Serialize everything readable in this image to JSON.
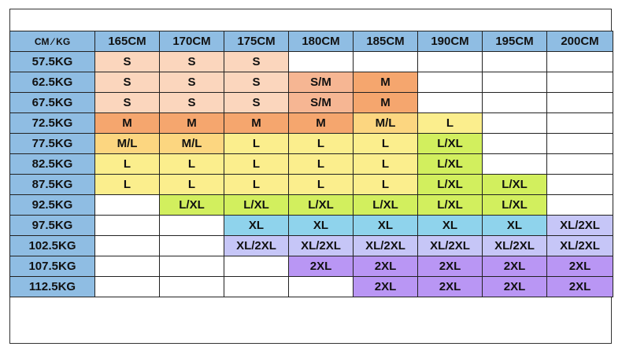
{
  "corner_label": "CM ⁄ KG",
  "heights": [
    "165CM",
    "170CM",
    "175CM",
    "180CM",
    "185CM",
    "190CM",
    "195CM",
    "200CM"
  ],
  "rows": [
    {
      "weight": "57.5KG",
      "sizes": [
        "S",
        "S",
        "S",
        "",
        "",
        "",
        "",
        ""
      ]
    },
    {
      "weight": "62.5KG",
      "sizes": [
        "S",
        "S",
        "S",
        "S/M",
        "M",
        "",
        "",
        ""
      ]
    },
    {
      "weight": "67.5KG",
      "sizes": [
        "S",
        "S",
        "S",
        "S/M",
        "M",
        "",
        "",
        ""
      ]
    },
    {
      "weight": "72.5KG",
      "sizes": [
        "M",
        "M",
        "M",
        "M",
        "M/L",
        "L",
        "",
        ""
      ]
    },
    {
      "weight": "77.5KG",
      "sizes": [
        "M/L",
        "M/L",
        "L",
        "L",
        "L",
        "L/XL",
        "",
        ""
      ]
    },
    {
      "weight": "82.5KG",
      "sizes": [
        "L",
        "L",
        "L",
        "L",
        "L",
        "L/XL",
        "",
        ""
      ]
    },
    {
      "weight": "87.5KG",
      "sizes": [
        "L",
        "L",
        "L",
        "L",
        "L",
        "L/XL",
        "L/XL",
        ""
      ]
    },
    {
      "weight": "92.5KG",
      "sizes": [
        "",
        "L/XL",
        "L/XL",
        "L/XL",
        "L/XL",
        "L/XL",
        "L/XL",
        ""
      ]
    },
    {
      "weight": "97.5KG",
      "sizes": [
        "",
        "",
        "XL",
        "XL",
        "XL",
        "XL",
        "XL",
        "XL/2XL"
      ]
    },
    {
      "weight": "102.5KG",
      "sizes": [
        "",
        "",
        "XL/2XL",
        "XL/2XL",
        "XL/2XL",
        "XL/2XL",
        "XL/2XL",
        "XL/2XL"
      ]
    },
    {
      "weight": "107.5KG",
      "sizes": [
        "",
        "",
        "",
        "2XL",
        "2XL",
        "2XL",
        "2XL",
        "2XL"
      ]
    },
    {
      "weight": "112.5KG",
      "sizes": [
        "",
        "",
        "",
        "",
        "2XL",
        "2XL",
        "2XL",
        "2XL"
      ]
    }
  ],
  "colors": {
    "header": "#8fbde3",
    "S": "#fbd6bd",
    "S/M": "#f6b693",
    "M": "#f5a66e",
    "M/L": "#fcd680",
    "L": "#fbee8d",
    "L/XL": "#d2ef5e",
    "XL": "#8fd3ec",
    "XL/2XL": "#c6c6f7",
    "2XL": "#b996f4"
  }
}
